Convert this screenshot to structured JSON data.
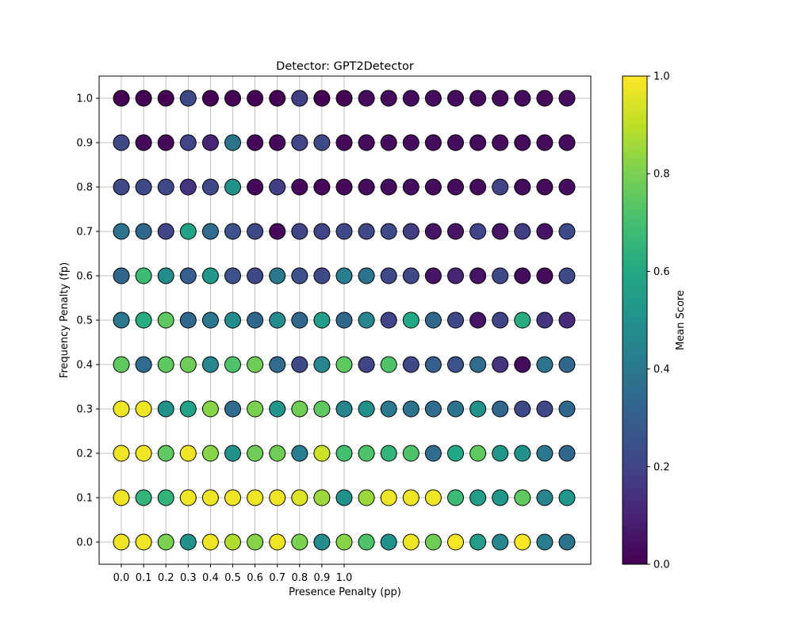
{
  "chart_data": {
    "type": "scatter",
    "title": "Detector: GPT2Detector",
    "xlabel": "Presence Penalty (pp)",
    "ylabel": "Frequency Penalty (fp)",
    "x_tick_labels": [
      "0.0",
      "0.1",
      "0.2",
      "0.3",
      "0.4",
      "0.5",
      "0.6",
      "0.7",
      "0.8",
      "0.9",
      "1.0"
    ],
    "y_tick_labels": [
      "0.0",
      "0.1",
      "0.2",
      "0.3",
      "0.4",
      "0.5",
      "0.6",
      "0.7",
      "0.8",
      "0.9",
      "1.0"
    ],
    "columns": 21,
    "xlim": [
      -0.05,
      2.05
    ],
    "ylim": [
      -0.05,
      1.05
    ],
    "grid": true,
    "marker": "circle, black edge",
    "colormap": "viridis",
    "colorbar": {
      "label": "Mean Score",
      "range": [
        0.0,
        1.0
      ],
      "tick_labels": [
        "0.0",
        "0.2",
        "0.4",
        "0.6",
        "0.8",
        "1.0"
      ]
    },
    "rows": [
      {
        "fp": 1.0,
        "scores": [
          0.0,
          0.0,
          0.0,
          0.22,
          0.0,
          0.0,
          0.0,
          0.0,
          0.18,
          0.0,
          0.0,
          0.03,
          0.03,
          0.03,
          0.03,
          0.03,
          0.03,
          0.03,
          0.03,
          0.03,
          0.03
        ]
      },
      {
        "fp": 0.9,
        "scores": [
          0.22,
          0.02,
          0.02,
          0.2,
          0.1,
          0.38,
          0.02,
          0.02,
          0.2,
          0.22,
          0.02,
          0.03,
          0.03,
          0.03,
          0.03,
          0.03,
          0.03,
          0.03,
          0.03,
          0.03,
          0.03
        ]
      },
      {
        "fp": 0.8,
        "scores": [
          0.22,
          0.22,
          0.22,
          0.15,
          0.22,
          0.5,
          0.02,
          0.18,
          0.02,
          0.02,
          0.02,
          0.03,
          0.03,
          0.03,
          0.03,
          0.03,
          0.03,
          0.2,
          0.03,
          0.03,
          0.03
        ]
      },
      {
        "fp": 0.7,
        "scores": [
          0.38,
          0.33,
          0.2,
          0.58,
          0.35,
          0.25,
          0.22,
          0.02,
          0.2,
          0.2,
          0.22,
          0.22,
          0.22,
          0.18,
          0.05,
          0.05,
          0.2,
          0.05,
          0.18,
          0.05,
          0.22
        ]
      },
      {
        "fp": 0.6,
        "scores": [
          0.33,
          0.68,
          0.48,
          0.3,
          0.52,
          0.25,
          0.22,
          0.4,
          0.25,
          0.22,
          0.42,
          0.38,
          0.22,
          0.22,
          0.05,
          0.1,
          0.05,
          0.22,
          0.03,
          0.03,
          0.22
        ]
      },
      {
        "fp": 0.5,
        "scores": [
          0.4,
          0.62,
          0.75,
          0.33,
          0.4,
          0.48,
          0.33,
          0.48,
          0.33,
          0.55,
          0.33,
          0.45,
          0.2,
          0.6,
          0.33,
          0.22,
          0.05,
          0.2,
          0.62,
          0.15,
          0.12
        ]
      },
      {
        "fp": 0.4,
        "scores": [
          0.75,
          0.35,
          0.75,
          0.78,
          0.45,
          0.72,
          0.78,
          0.35,
          0.22,
          0.45,
          0.75,
          0.2,
          0.72,
          0.22,
          0.3,
          0.25,
          0.35,
          0.15,
          0.03,
          0.38,
          0.33
        ]
      },
      {
        "fp": 0.3,
        "scores": [
          0.98,
          0.98,
          0.5,
          0.58,
          0.82,
          0.35,
          0.8,
          0.52,
          0.78,
          0.75,
          0.45,
          0.5,
          0.4,
          0.38,
          0.35,
          0.38,
          0.5,
          0.33,
          0.22,
          0.22,
          0.33
        ]
      },
      {
        "fp": 0.2,
        "scores": [
          0.98,
          0.98,
          0.75,
          0.98,
          0.82,
          0.5,
          0.78,
          0.78,
          0.42,
          0.92,
          0.7,
          0.72,
          0.65,
          0.72,
          0.35,
          0.6,
          0.75,
          0.52,
          0.5,
          0.4,
          0.33
        ]
      },
      {
        "fp": 0.1,
        "scores": [
          0.98,
          0.65,
          0.65,
          0.98,
          0.98,
          0.98,
          0.98,
          0.98,
          0.95,
          0.85,
          0.5,
          0.85,
          0.98,
          0.98,
          0.98,
          0.68,
          0.55,
          0.52,
          0.75,
          0.45,
          0.52
        ]
      },
      {
        "fp": 0.0,
        "scores": [
          0.98,
          0.98,
          0.8,
          0.5,
          0.98,
          0.88,
          0.82,
          0.98,
          0.8,
          0.48,
          0.82,
          0.72,
          0.5,
          0.98,
          0.78,
          0.99,
          0.55,
          0.45,
          0.99,
          0.42,
          0.38
        ]
      }
    ]
  }
}
